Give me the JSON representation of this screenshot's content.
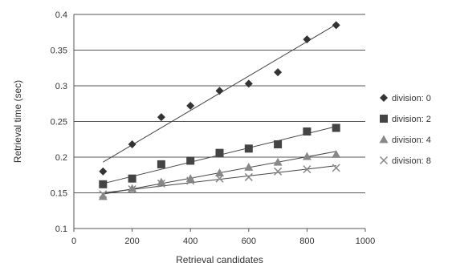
{
  "chart_data": {
    "type": "scatter",
    "title": "",
    "xlabel": "Retrieval candidates",
    "ylabel": "Retrieval time (sec)",
    "xlim": [
      0,
      1000
    ],
    "ylim": [
      0.1,
      0.4
    ],
    "xticks": [
      "0",
      "200",
      "400",
      "600",
      "800",
      "1000"
    ],
    "yticks": [
      "0.1",
      "0.15",
      "0.2",
      "0.25",
      "0.3",
      "0.35",
      "0.4"
    ],
    "grid": "horizontal",
    "legend_position": "right",
    "series": [
      {
        "name": "division: 0",
        "marker": "diamond",
        "color": "#333333",
        "x": [
          100,
          200,
          300,
          400,
          500,
          600,
          700,
          800,
          900
        ],
        "y": [
          0.18,
          0.218,
          0.256,
          0.272,
          0.293,
          0.303,
          0.319,
          0.365,
          0.385
        ],
        "trend": [
          [
            100,
            0.193
          ],
          [
            900,
            0.386
          ]
        ]
      },
      {
        "name": "division: 2",
        "marker": "square",
        "color": "#444444",
        "x": [
          100,
          200,
          300,
          400,
          500,
          600,
          700,
          800,
          900
        ],
        "y": [
          0.162,
          0.17,
          0.19,
          0.195,
          0.206,
          0.212,
          0.218,
          0.236,
          0.241
        ],
        "trend": [
          [
            100,
            0.163
          ],
          [
            900,
            0.243
          ]
        ]
      },
      {
        "name": "division: 4",
        "marker": "triangle",
        "color": "#888888",
        "x": [
          100,
          200,
          300,
          400,
          500,
          600,
          700,
          800,
          900
        ],
        "y": [
          0.145,
          0.156,
          0.165,
          0.17,
          0.178,
          0.186,
          0.193,
          0.201,
          0.204
        ],
        "trend": [
          [
            100,
            0.148
          ],
          [
            900,
            0.208
          ]
        ]
      },
      {
        "name": "division: 8",
        "marker": "x",
        "color": "#888888",
        "x": [
          100,
          200,
          300,
          400,
          500,
          600,
          700,
          800,
          900
        ],
        "y": [
          0.148,
          0.155,
          0.163,
          0.167,
          0.17,
          0.172,
          0.18,
          0.183,
          0.185
        ],
        "trend": [
          [
            100,
            0.15
          ],
          [
            900,
            0.188
          ]
        ]
      }
    ]
  }
}
